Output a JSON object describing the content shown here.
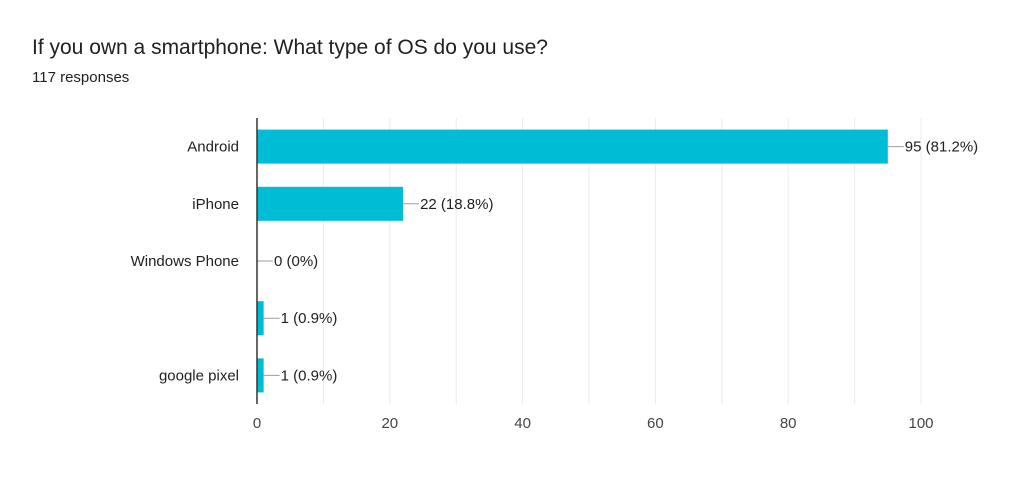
{
  "header": {
    "title": "If you own a smartphone: What type of OS do you use?",
    "subtitle": "117 responses"
  },
  "colors": {
    "bar": "#00bcd4",
    "grid": "#ebebeb",
    "axis": "#333333",
    "text": "#202124",
    "connector": "#9e9e9e"
  },
  "chart_data": {
    "type": "bar",
    "orientation": "horizontal",
    "categories": [
      "Android",
      "iPhone",
      "Windows Phone",
      "",
      "google pixel"
    ],
    "values": [
      95,
      22,
      0,
      1,
      1
    ],
    "value_labels": [
      "95 (81.2%)",
      "22 (18.8%)",
      "0 (0%)",
      "1 (0.9%)",
      "1 (0.9%)"
    ],
    "xlim": [
      0,
      100
    ],
    "xticks": [
      0,
      20,
      40,
      60,
      80,
      100
    ],
    "xtick_labels": [
      "0",
      "20",
      "40",
      "60",
      "80",
      "100"
    ],
    "grid": true
  }
}
